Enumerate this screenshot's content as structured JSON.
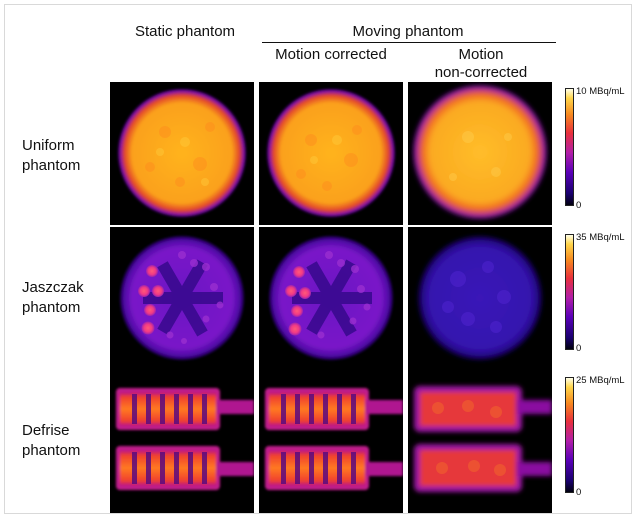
{
  "headers": {
    "static": "Static phantom",
    "moving": "Moving phantom",
    "corrected": "Motion corrected",
    "non_corrected_line1": "Motion",
    "non_corrected_line2": "non-corrected"
  },
  "rows": [
    {
      "line1": "Uniform",
      "line2": "phantom",
      "scale_max": "10 MBq/mL",
      "scale_min": "0"
    },
    {
      "line1": "Jaszczak",
      "line2": "phantom",
      "scale_max": "35 MBq/mL",
      "scale_min": "0"
    },
    {
      "line1": "Defrise",
      "line2": "phantom",
      "scale_max": "25 MBq/mL",
      "scale_min": "0"
    }
  ],
  "colormap": "hot-purple (black → purple → red → orange → yellow → white)"
}
